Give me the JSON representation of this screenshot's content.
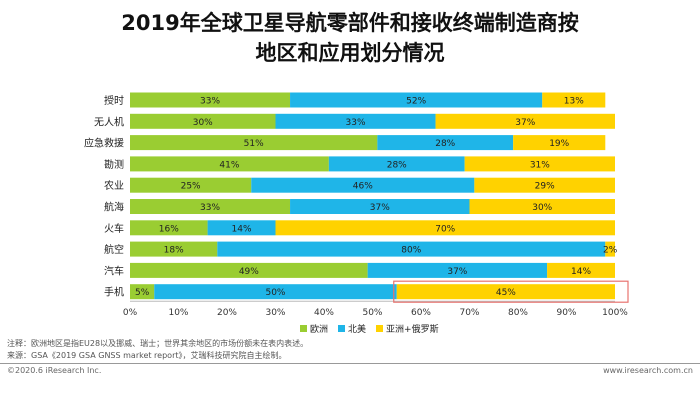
{
  "title_line1": "2019年全球卫星导航零部件和接收终端制造商按",
  "title_line2": "地区和应用划分情况",
  "chart_data": {
    "type": "bar",
    "orientation": "horizontal",
    "stacked": true,
    "categories": [
      "授时",
      "无人机",
      "应急救援",
      "勘测",
      "农业",
      "航海",
      "火车",
      "航空",
      "汽车",
      "手机"
    ],
    "series": [
      {
        "name": "欧洲",
        "color": "#9ACD32",
        "values": [
          33,
          30,
          51,
          41,
          25,
          33,
          16,
          18,
          49,
          5
        ]
      },
      {
        "name": "北美",
        "color": "#1FB5E8",
        "values": [
          52,
          33,
          28,
          28,
          46,
          37,
          14,
          80,
          37,
          50
        ]
      },
      {
        "name": "亚洲+俄罗斯",
        "color": "#FFD200",
        "values": [
          13,
          37,
          19,
          31,
          29,
          30,
          70,
          2,
          14,
          45
        ]
      }
    ],
    "value_labels": [
      [
        "33%",
        "52%",
        "13%"
      ],
      [
        "30%",
        "33%",
        "37%"
      ],
      [
        "51%",
        "28%",
        "19%"
      ],
      [
        "41%",
        "28%",
        "31%"
      ],
      [
        "25%",
        "46%",
        "29%"
      ],
      [
        "33%",
        "37%",
        "30%"
      ],
      [
        "16%",
        "14%",
        "70%"
      ],
      [
        "18%",
        "80%",
        "2%"
      ],
      [
        "49%",
        "37%",
        "14%"
      ],
      [
        "5%",
        "50%",
        "45%"
      ]
    ],
    "x_ticks": [
      "0%",
      "10%",
      "20%",
      "30%",
      "40%",
      "50%",
      "60%",
      "70%",
      "80%",
      "90%",
      "100%"
    ],
    "xlim": [
      0,
      100
    ],
    "highlight": {
      "category": "手机",
      "series": "亚洲+俄罗斯",
      "color": "#E8736F"
    },
    "legend_position": "bottom"
  },
  "notes": {
    "note": "注释：欧洲地区是指EU28以及挪威、瑞士；世界其余地区的市场份额未在表内表述。",
    "source": "来源：GSA《2019 GSA GNSS market report》，艾瑞科技研究院自主绘制。"
  },
  "footer": {
    "left": "©2020.6 iResearch Inc.",
    "right": "www.iresearch.com.cn"
  }
}
